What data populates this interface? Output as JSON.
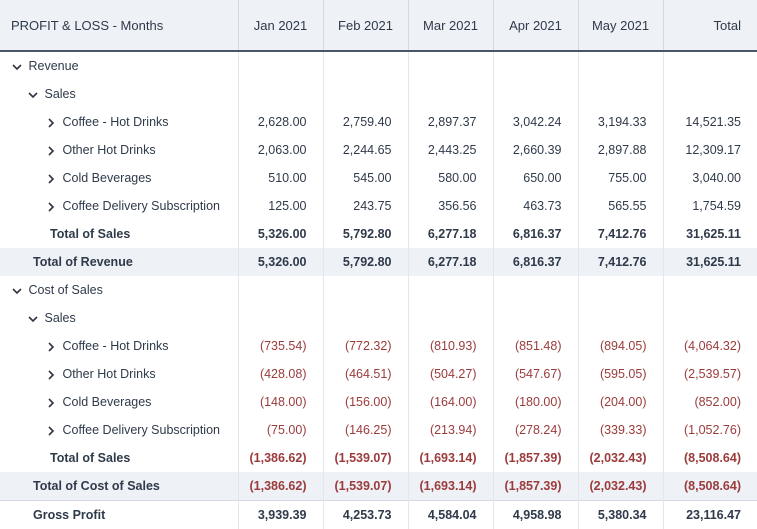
{
  "header": {
    "title": "PROFIT & LOSS - Months",
    "months": [
      "Jan 2021",
      "Feb 2021",
      "Mar 2021",
      "Apr 2021",
      "May 2021"
    ],
    "total": "Total"
  },
  "rows": [
    {
      "label": "Revenue",
      "level": 0,
      "type": "group",
      "values": []
    },
    {
      "label": "Sales",
      "level": 1,
      "type": "group",
      "values": []
    },
    {
      "label": "Coffee - Hot Drinks",
      "level": 2,
      "type": "item",
      "values": [
        "2,628.00",
        "2,759.40",
        "2,897.37",
        "3,042.24",
        "3,194.33",
        "14,521.35"
      ]
    },
    {
      "label": "Other Hot Drinks",
      "level": 2,
      "type": "item",
      "values": [
        "2,063.00",
        "2,244.65",
        "2,443.25",
        "2,660.39",
        "2,897.88",
        "12,309.17"
      ]
    },
    {
      "label": "Cold Beverages",
      "level": 2,
      "type": "item",
      "values": [
        "510.00",
        "545.00",
        "580.00",
        "650.00",
        "755.00",
        "3,040.00"
      ]
    },
    {
      "label": "Coffee Delivery Subscription",
      "level": 2,
      "type": "item",
      "values": [
        "125.00",
        "243.75",
        "356.56",
        "463.73",
        "565.55",
        "1,754.59"
      ]
    },
    {
      "label": "Total of Sales",
      "level": 2,
      "type": "subtotal",
      "values": [
        "5,326.00",
        "5,792.80",
        "6,277.18",
        "6,816.37",
        "7,412.76",
        "31,625.11"
      ]
    },
    {
      "label": "Total of Revenue",
      "level": 1,
      "type": "total",
      "values": [
        "5,326.00",
        "5,792.80",
        "6,277.18",
        "6,816.37",
        "7,412.76",
        "31,625.11"
      ]
    },
    {
      "label": "Cost of Sales",
      "level": 0,
      "type": "group",
      "values": []
    },
    {
      "label": "Sales",
      "level": 1,
      "type": "group",
      "values": []
    },
    {
      "label": "Coffee - Hot Drinks",
      "level": 2,
      "type": "item",
      "values": [
        "(735.54)",
        "(772.32)",
        "(810.93)",
        "(851.48)",
        "(894.05)",
        "(4,064.32)"
      ]
    },
    {
      "label": "Other Hot Drinks",
      "level": 2,
      "type": "item",
      "values": [
        "(428.08)",
        "(464.51)",
        "(504.27)",
        "(547.67)",
        "(595.05)",
        "(2,539.57)"
      ]
    },
    {
      "label": "Cold Beverages",
      "level": 2,
      "type": "item",
      "values": [
        "(148.00)",
        "(156.00)",
        "(164.00)",
        "(180.00)",
        "(204.00)",
        "(852.00)"
      ]
    },
    {
      "label": "Coffee Delivery Subscription",
      "level": 2,
      "type": "item",
      "values": [
        "(75.00)",
        "(146.25)",
        "(213.94)",
        "(278.24)",
        "(339.33)",
        "(1,052.76)"
      ]
    },
    {
      "label": "Total of Sales",
      "level": 2,
      "type": "subtotal",
      "values": [
        "(1,386.62)",
        "(1,539.07)",
        "(1,693.14)",
        "(1,857.39)",
        "(2,032.43)",
        "(8,508.64)"
      ]
    },
    {
      "label": "Total of Cost of Sales",
      "level": 1,
      "type": "total",
      "values": [
        "(1,386.62)",
        "(1,539.07)",
        "(1,693.14)",
        "(1,857.39)",
        "(2,032.43)",
        "(8,508.64)"
      ]
    },
    {
      "label": "Gross Profit",
      "level": 1,
      "type": "gross",
      "values": [
        "3,939.39",
        "4,253.73",
        "4,584.04",
        "4,958.98",
        "5,380.34",
        "23,116.47"
      ]
    }
  ],
  "colors": {
    "negative": "#9b3b3b",
    "header_bg": "#eef1f6",
    "text": "#2f3a4a"
  }
}
